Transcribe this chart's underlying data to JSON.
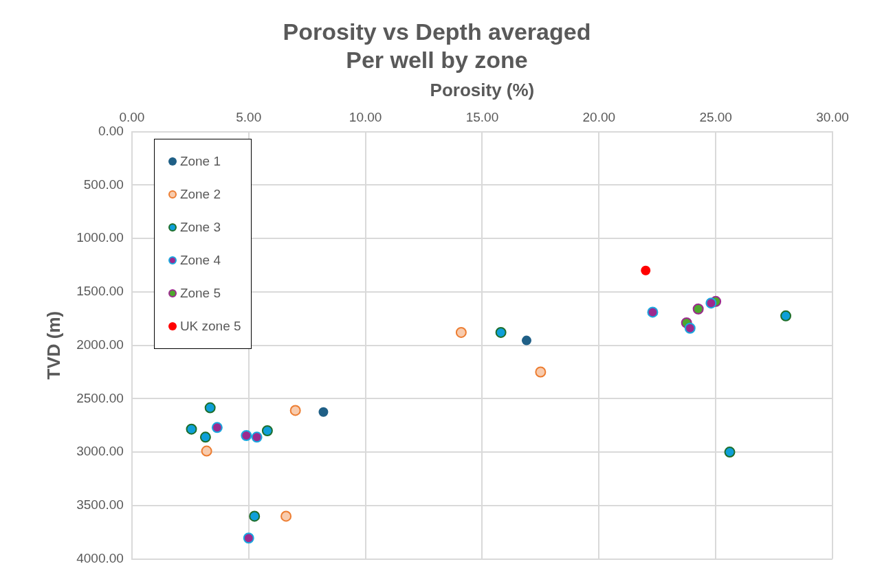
{
  "chart_data": {
    "type": "scatter",
    "title": "Porosity vs Depth averaged\nPer well by zone",
    "xlabel": "Porosity (%)",
    "ylabel": "TVD (m)",
    "xlim": [
      0,
      30
    ],
    "xticks": [
      {
        "value": 0,
        "label": "0.00"
      },
      {
        "value": 5,
        "label": "5.00"
      },
      {
        "value": 10,
        "label": "10.00"
      },
      {
        "value": 15,
        "label": "15.00"
      },
      {
        "value": 20,
        "label": "20.00"
      },
      {
        "value": 25,
        "label": "25.00"
      },
      {
        "value": 30,
        "label": "30.00"
      }
    ],
    "ylim": [
      4000,
      0
    ],
    "yticks": [
      {
        "value": 0,
        "label": "0.00"
      },
      {
        "value": 500,
        "label": "500.00"
      },
      {
        "value": 1000,
        "label": "1000.00"
      },
      {
        "value": 1500,
        "label": "1500.00"
      },
      {
        "value": 2000,
        "label": "2000.00"
      },
      {
        "value": 2500,
        "label": "2500.00"
      },
      {
        "value": 3000,
        "label": "3000.00"
      },
      {
        "value": 3500,
        "label": "3500.00"
      },
      {
        "value": 4000,
        "label": "4000.00"
      }
    ],
    "grid": true,
    "legend": "top left",
    "marker": "circle",
    "series": [
      {
        "name": "Zone 1",
        "color": "#1f5f86",
        "x": [
          8.2,
          16.9
        ],
        "values": [
          2625,
          1955
        ]
      },
      {
        "name": "Zone 2",
        "color": "#f8cbad",
        "x": [
          14.1,
          17.5,
          7.0,
          3.2,
          6.6
        ],
        "values": [
          1880,
          2250,
          2610,
          2990,
          3600
        ]
      },
      {
        "name": "Zone 3",
        "color": "#0e9fd8",
        "x": [
          3.35,
          2.55,
          3.15,
          5.8,
          15.8,
          28.0,
          25.6,
          5.25
        ],
        "values": [
          2585,
          2785,
          2860,
          2800,
          1880,
          1725,
          3000,
          3600
        ]
      },
      {
        "name": "Zone 4",
        "color": "#9c2a8e",
        "x": [
          3.65,
          4.9,
          5.35,
          5.0,
          22.3,
          23.9,
          24.8
        ],
        "values": [
          2770,
          2845,
          2860,
          3805,
          1690,
          1840,
          1605
        ]
      },
      {
        "name": "Zone 5",
        "color": "#4ea72e",
        "x": [
          23.75,
          24.25,
          25.0
        ],
        "values": [
          1790,
          1660,
          1590
        ]
      },
      {
        "name": "UK zone 5",
        "color": "#ff0000",
        "x": [
          22.0
        ],
        "values": [
          1300
        ]
      }
    ]
  }
}
